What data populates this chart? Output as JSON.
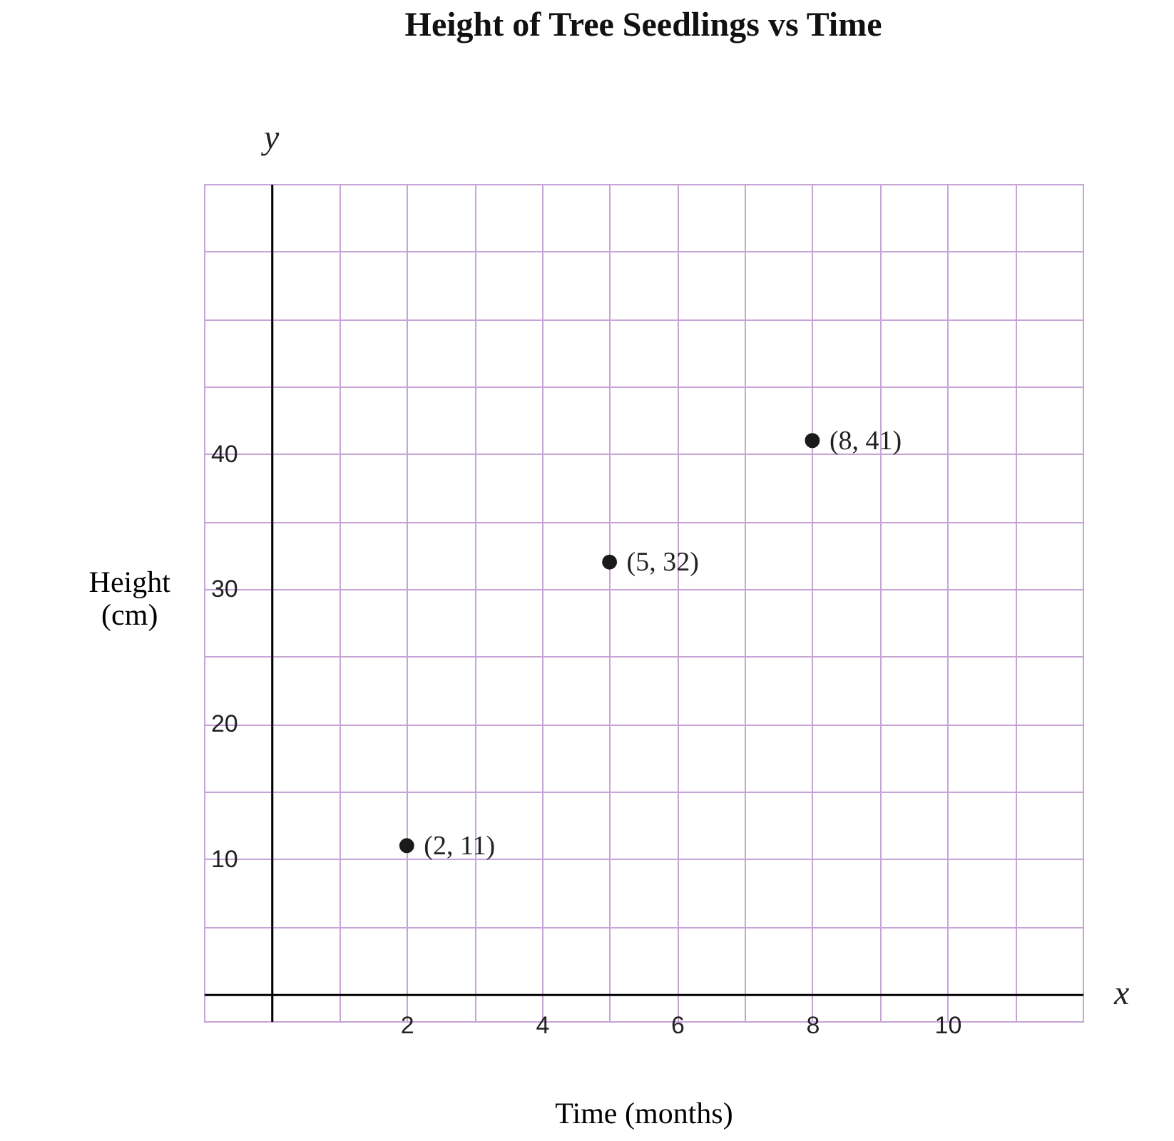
{
  "chart_data": {
    "type": "scatter",
    "title": "Height of Tree Seedlings vs Time",
    "xlabel": "Time (months)",
    "ylabel": "Height (cm)",
    "annotations": [
      "y",
      "x"
    ],
    "x": [
      2,
      5,
      8
    ],
    "values": [
      11,
      32,
      41
    ],
    "value_labels": [
      "(2, 11)",
      "(5, 32)",
      "(8, 41)"
    ],
    "color": "#1a1a1a",
    "marker": "circle",
    "xlim": [
      -1,
      12
    ],
    "ylim": [
      -2,
      60
    ],
    "xticks": [
      {
        "value": -1,
        "label": null
      },
      {
        "value": 0,
        "label": null
      },
      {
        "value": 1,
        "label": null
      },
      2,
      {
        "value": 3,
        "label": null
      },
      4,
      {
        "value": 5,
        "label": null
      },
      6,
      {
        "value": 7,
        "label": null
      },
      8,
      {
        "value": 9,
        "label": null
      },
      10,
      {
        "value": 11,
        "label": null
      },
      {
        "value": 12,
        "label": null
      }
    ],
    "yticks": [
      {
        "value": 0,
        "label": null
      },
      {
        "value": 5,
        "label": null
      },
      10,
      {
        "value": 15,
        "label": null
      },
      20,
      {
        "value": 25,
        "label": null
      },
      30,
      {
        "value": 35,
        "label": null
      },
      40,
      {
        "value": 45,
        "label": null
      },
      {
        "value": 50,
        "label": null
      },
      {
        "value": 55,
        "label": null
      },
      {
        "value": 60,
        "label": null
      }
    ],
    "grid": true
  }
}
